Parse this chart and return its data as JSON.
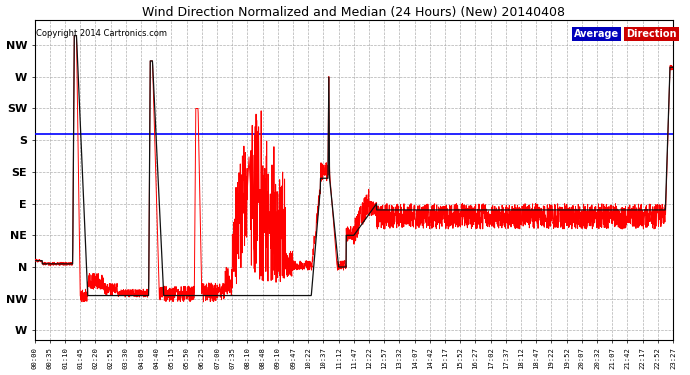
{
  "title": "Wind Direction Normalized and Median (24 Hours) (New) 20140408",
  "copyright": "Copyright 2014 Cartronics.com",
  "background_color": "#ffffff",
  "plot_bg_color": "#ffffff",
  "grid_color": "#b0b0b0",
  "ytick_labels": [
    "NW",
    "W",
    "SW",
    "S",
    "SE",
    "E",
    "NE",
    "N",
    "NW",
    "W"
  ],
  "ytick_values": [
    9,
    8,
    7,
    6,
    5,
    4,
    3,
    2,
    1,
    0
  ],
  "median_value": 6.2,
  "legend_avg_bg": "#0000bb",
  "legend_dir_bg": "#cc0000",
  "legend_avg_text": "Average",
  "legend_dir_text": "Direction",
  "xtick_labels": [
    "00:00",
    "00:35",
    "01:10",
    "01:45",
    "02:20",
    "02:55",
    "03:30",
    "04:05",
    "04:40",
    "05:15",
    "05:50",
    "06:25",
    "07:00",
    "07:35",
    "08:10",
    "08:48",
    "09:10",
    "09:47",
    "10:22",
    "10:37",
    "11:12",
    "11:47",
    "12:22",
    "12:57",
    "13:32",
    "14:07",
    "14:42",
    "15:17",
    "15:52",
    "16:27",
    "17:02",
    "17:37",
    "18:12",
    "18:47",
    "19:22",
    "19:52",
    "20:07",
    "20:32",
    "21:07",
    "21:42",
    "22:17",
    "22:52",
    "23:27"
  ],
  "ylim_min": -0.3,
  "ylim_max": 9.8
}
